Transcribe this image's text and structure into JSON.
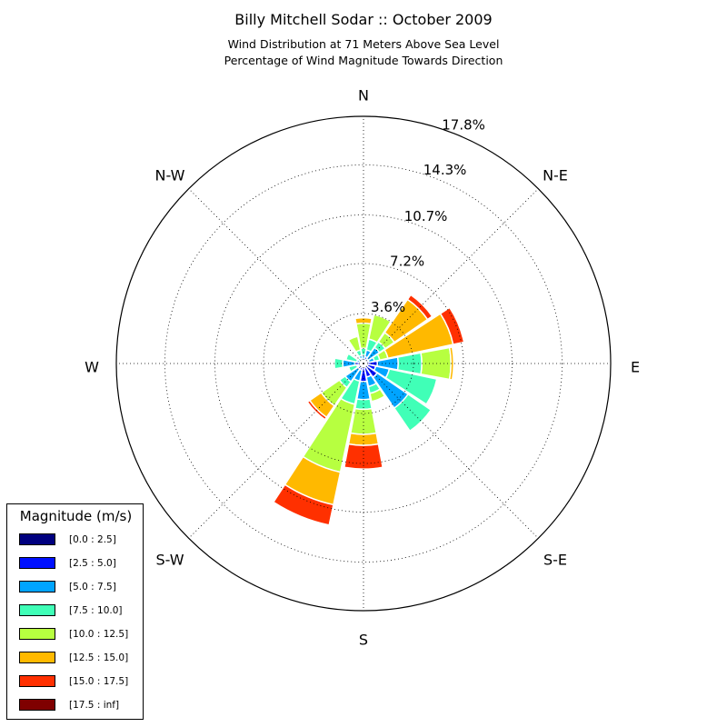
{
  "title": "Billy Mitchell Sodar :: October 2009",
  "subtitle_line1": "Wind Distribution at 71 Meters Above Sea Level",
  "subtitle_line2": "Percentage of Wind Magnitude Towards Direction",
  "chart_data": {
    "type": "windrose",
    "direction_labels": [
      "N",
      "N-E",
      "E",
      "S-E",
      "S",
      "S-W",
      "W",
      "N-W"
    ],
    "radial_tick_labels": [
      "3.6%",
      "7.2%",
      "10.7%",
      "14.3%",
      "17.8%"
    ],
    "radial_ticks": [
      3.6,
      7.2,
      10.7,
      14.3,
      17.8
    ],
    "rmax": 17.8,
    "legend_title": "Magnitude (m/s)",
    "bins": [
      "[0.0 : 2.5]",
      "[2.5 : 5.0]",
      "[5.0 : 7.5]",
      "[7.5 : 10.0]",
      "[10.0 : 12.5]",
      "[12.5 : 15.0]",
      "[15.0 : 17.5]",
      "[17.5 : inf]"
    ],
    "colors": [
      "#00007f",
      "#0010ff",
      "#00a4ff",
      "#40ffb7",
      "#b7ff40",
      "#ffb900",
      "#ff3000",
      "#7f0000"
    ],
    "directions_deg": [
      0,
      22.5,
      45,
      67.5,
      90,
      112.5,
      135,
      157.5,
      180,
      202.5,
      225,
      247.5,
      270,
      292.5,
      315,
      337.5
    ],
    "cumulative_by_direction": [
      [
        0.1,
        0.3,
        0.6,
        1.1,
        2.9,
        3.3,
        3.3,
        3.3
      ],
      [
        0.2,
        0.5,
        1.0,
        1.8,
        3.6,
        3.6,
        3.6,
        3.6
      ],
      [
        0.2,
        0.4,
        1.4,
        1.9,
        2.7,
        5.6,
        6.0,
        6.0
      ],
      [
        0.2,
        0.4,
        0.8,
        1.2,
        1.8,
        6.6,
        7.4,
        7.4
      ],
      [
        0.2,
        1.0,
        2.5,
        4.2,
        6.3,
        6.5,
        6.5,
        6.5
      ],
      [
        0.3,
        0.9,
        1.9,
        5.4,
        5.4,
        5.4,
        5.4,
        5.4
      ],
      [
        0.2,
        1.2,
        3.9,
        5.9,
        5.9,
        5.9,
        5.9,
        5.9
      ],
      [
        0.2,
        1.0,
        1.7,
        2.2,
        2.8,
        2.8,
        2.8,
        2.8
      ],
      [
        0.2,
        1.3,
        2.6,
        3.3,
        5.1,
        5.9,
        7.6,
        7.6
      ],
      [
        0.2,
        0.5,
        1.3,
        3.0,
        8.0,
        10.4,
        11.9,
        11.9
      ],
      [
        0.2,
        0.5,
        1.6,
        2.1,
        3.7,
        4.7,
        4.9,
        4.9
      ],
      [
        0.2,
        0.4,
        0.5,
        1.1,
        1.2,
        1.3,
        1.3,
        1.3
      ],
      [
        0.2,
        0.6,
        1.5,
        2.1,
        2.1,
        2.1,
        2.1,
        2.1
      ],
      [
        0.1,
        0.1,
        0.5,
        1.3,
        1.4,
        1.4,
        1.4,
        1.4
      ],
      [
        0.1,
        0.1,
        0.2,
        0.5,
        0.6,
        0.6,
        0.6,
        0.6
      ],
      [
        0.1,
        0.4,
        0.6,
        1.0,
        2.0,
        2.0,
        2.0,
        2.0
      ]
    ]
  }
}
